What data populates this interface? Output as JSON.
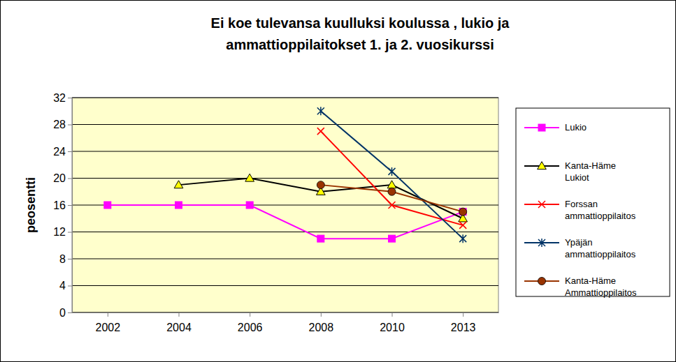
{
  "chart_data": {
    "type": "line",
    "title": [
      "Ei koe tulevansa kuulluksi koulussa , lukio ja",
      "ammattioppilaitokset  1. ja 2. vuosikurssi"
    ],
    "y_label": "peosentti",
    "categories": [
      "2002",
      "2004",
      "2006",
      "2008",
      "2010",
      "2013"
    ],
    "ylim": [
      0,
      32
    ],
    "yticks": [
      0,
      4,
      8,
      12,
      16,
      20,
      24,
      28,
      32
    ],
    "grid": true,
    "legend": "right",
    "series": [
      {
        "name": "Lukio",
        "color": "#ff00ff",
        "marker": "square",
        "values": [
          16,
          16,
          16,
          11,
          11,
          15
        ]
      },
      {
        "name": "Kanta-Häme Lukiot",
        "color": "#000000",
        "marker": "triangle",
        "values": [
          null,
          19,
          20,
          18,
          19,
          14
        ]
      },
      {
        "name": "Forssan ammattioppilaitos",
        "color": "#ff0000",
        "marker": "x",
        "values": [
          null,
          null,
          null,
          27,
          16,
          13
        ]
      },
      {
        "name": "Ypäjän ammattioppilaitos",
        "color": "#003366",
        "marker": "star",
        "values": [
          null,
          null,
          null,
          30,
          21,
          11
        ]
      },
      {
        "name": "Kanta-Häme Ammattioppilaitos",
        "color": "#993300",
        "marker": "circle",
        "values": [
          null,
          null,
          null,
          19,
          18,
          15
        ]
      }
    ]
  }
}
